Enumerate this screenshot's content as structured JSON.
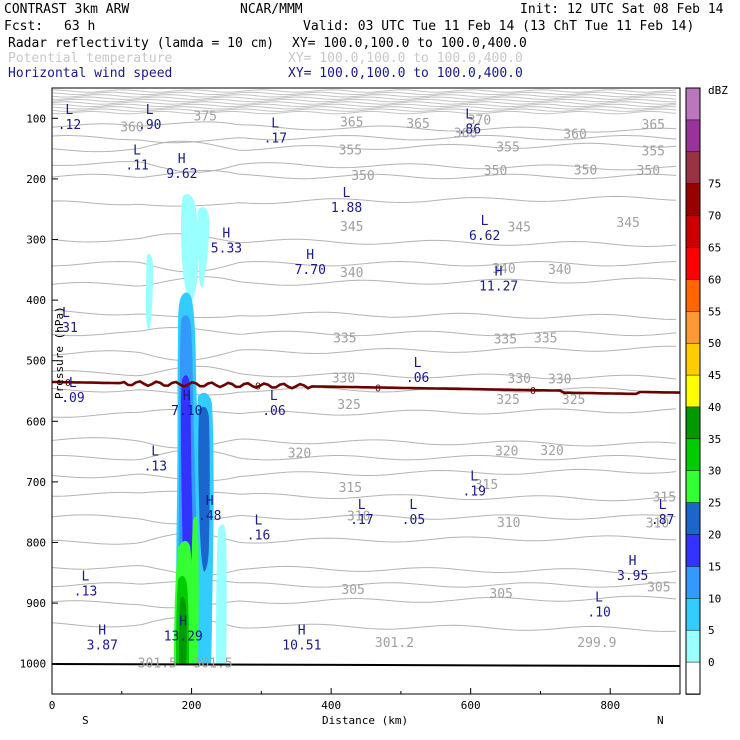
{
  "header": {
    "model": "CONTRAST  3km ARW",
    "org": "NCAR/MMM",
    "init": "Init: 12 UTC Sat 08 Feb 14",
    "fcst_label": "Fcst:",
    "fcst_value": "63 h",
    "valid": "Valid: 03 UTC Tue 11 Feb 14 (13 ChT Tue 11 Feb 14)",
    "line1_name": "Radar reflectivity (lamda = 10 cm)",
    "line1_xy": "XY= 100.0,100.0 to 100.0,400.0",
    "line2_name": "Potential temperature",
    "line2_xy": "XY= 100.0,100.0 to 100.0,400.0",
    "line3_name": "Horizontal wind speed",
    "line3_xy": "XY= 100.0,100.0 to 100.0,400.0"
  },
  "colors": {
    "refl_1": "#99ffff",
    "refl_2": "#33ccff",
    "refl_3": "#3399ff",
    "refl_4": "#3333ff",
    "refl_5": "#1a66cc",
    "refl_6": "#33ff33",
    "refl_7": "#00cc00",
    "refl_8": "#009900",
    "theta": "#a8a8a8",
    "freezing": "#6b0000",
    "wind": "#1a1a8c"
  },
  "chart_data": {
    "type": "cross-section",
    "xlabel": "Distance (km)",
    "ylabel": "Pressure (hPa)",
    "xlim": [
      0,
      900
    ],
    "ylim": [
      1050,
      50
    ],
    "x_ticks": [
      "0",
      "200",
      "400",
      "600",
      "800"
    ],
    "y_ticks": [
      "100",
      "200",
      "300",
      "400",
      "500",
      "600",
      "700",
      "800",
      "900",
      "1000"
    ],
    "x_end_left": "S",
    "x_end_right": "N",
    "colorbar": {
      "unit": "dBZ",
      "levels": [
        "0",
        "5",
        "10",
        "15",
        "20",
        "25",
        "30",
        "35",
        "40",
        "45",
        "50",
        "55",
        "60",
        "65",
        "70",
        "75"
      ],
      "colors": [
        "#ffffff",
        "#99ffff",
        "#33ccff",
        "#3399ff",
        "#3333ff",
        "#1a66cc",
        "#33ff33",
        "#00cc00",
        "#009900",
        "#ffff00",
        "#ffcc00",
        "#ff9933",
        "#ff6600",
        "#ff0000",
        "#cc0000",
        "#990000",
        "#993344",
        "#993399",
        "#bb77bb"
      ]
    },
    "freezing_level": {
      "label": "0",
      "pressure_hPa": 545
    },
    "theta_labels": [
      {
        "t": "375",
        "x": 220,
        "p": 97
      },
      {
        "t": "360",
        "x": 115,
        "p": 115
      },
      {
        "t": "365",
        "x": 430,
        "p": 107
      },
      {
        "t": "365",
        "x": 525,
        "p": 109
      },
      {
        "t": "370",
        "x": 613,
        "p": 104
      },
      {
        "t": "360",
        "x": 593,
        "p": 125
      },
      {
        "t": "360",
        "x": 750,
        "p": 127
      },
      {
        "t": "365",
        "x": 862,
        "p": 111
      },
      {
        "t": "355",
        "x": 428,
        "p": 153
      },
      {
        "t": "355",
        "x": 654,
        "p": 148
      },
      {
        "t": "355",
        "x": 862,
        "p": 155
      },
      {
        "t": "350",
        "x": 446,
        "p": 195
      },
      {
        "t": "350",
        "x": 636,
        "p": 187
      },
      {
        "t": "350",
        "x": 765,
        "p": 186
      },
      {
        "t": "350",
        "x": 855,
        "p": 187
      },
      {
        "t": "345",
        "x": 430,
        "p": 279
      },
      {
        "t": "345",
        "x": 670,
        "p": 280
      },
      {
        "t": "345",
        "x": 826,
        "p": 273
      },
      {
        "t": "340",
        "x": 430,
        "p": 355
      },
      {
        "t": "340",
        "x": 648,
        "p": 349
      },
      {
        "t": "340",
        "x": 728,
        "p": 350
      },
      {
        "t": "335",
        "x": 420,
        "p": 463
      },
      {
        "t": "335",
        "x": 650,
        "p": 465
      },
      {
        "t": "335",
        "x": 708,
        "p": 463
      },
      {
        "t": "330",
        "x": 418,
        "p": 529
      },
      {
        "t": "330",
        "x": 670,
        "p": 530
      },
      {
        "t": "330",
        "x": 728,
        "p": 531
      },
      {
        "t": "325",
        "x": 426,
        "p": 573
      },
      {
        "t": "325",
        "x": 654,
        "p": 565
      },
      {
        "t": "325",
        "x": 748,
        "p": 565
      },
      {
        "t": "320",
        "x": 355,
        "p": 653
      },
      {
        "t": "320",
        "x": 652,
        "p": 650
      },
      {
        "t": "320",
        "x": 717,
        "p": 649
      },
      {
        "t": "315",
        "x": 428,
        "p": 710
      },
      {
        "t": "315",
        "x": 623,
        "p": 705
      },
      {
        "t": "315",
        "x": 878,
        "p": 726
      },
      {
        "t": "310",
        "x": 440,
        "p": 757
      },
      {
        "t": "310",
        "x": 655,
        "p": 768
      },
      {
        "t": "310",
        "x": 868,
        "p": 769
      },
      {
        "t": "305",
        "x": 432,
        "p": 878
      },
      {
        "t": "305",
        "x": 644,
        "p": 885
      },
      {
        "t": "305",
        "x": 870,
        "p": 874
      },
      {
        "t": "301.2",
        "x": 480,
        "p": 966
      },
      {
        "t": "301.5",
        "x": 140,
        "p": 1000
      },
      {
        "t": "301.5",
        "x": 220,
        "p": 1000
      },
      {
        "t": "299.9",
        "x": 770,
        "p": 966
      }
    ],
    "wind_extrema": [
      {
        "type": "L",
        "value": ".12",
        "x": 25,
        "p": 103
      },
      {
        "type": "L",
        "value": ".90",
        "x": 140,
        "p": 103
      },
      {
        "type": "L",
        "value": ".17",
        "x": 320,
        "p": 125
      },
      {
        "type": "L",
        "value": ".86",
        "x": 598,
        "p": 110
      },
      {
        "type": "L",
        "value": ".11",
        "x": 122,
        "p": 170
      },
      {
        "type": "H",
        "value": "9.62",
        "x": 186,
        "p": 184
      },
      {
        "type": "L",
        "value": "1.88",
        "x": 422,
        "p": 240
      },
      {
        "type": "L",
        "value": "6.62",
        "x": 620,
        "p": 286
      },
      {
        "type": "H",
        "value": "5.33",
        "x": 250,
        "p": 307
      },
      {
        "type": "H",
        "value": "7.70",
        "x": 370,
        "p": 342
      },
      {
        "type": "H",
        "value": "11.27",
        "x": 640,
        "p": 369
      },
      {
        "type": "L",
        "value": ".31",
        "x": 20,
        "p": 438
      },
      {
        "type": "L",
        "value": ".06",
        "x": 524,
        "p": 520
      },
      {
        "type": "L",
        "value": ".09",
        "x": 30,
        "p": 553
      },
      {
        "type": "H",
        "value": "7.10",
        "x": 193,
        "p": 575
      },
      {
        "type": "L",
        "value": ".06",
        "x": 318,
        "p": 575
      },
      {
        "type": "L",
        "value": ".13",
        "x": 148,
        "p": 666
      },
      {
        "type": "L",
        "value": ".19",
        "x": 605,
        "p": 708
      },
      {
        "type": "L",
        "value": ".17",
        "x": 444,
        "p": 755
      },
      {
        "type": "L",
        "value": ".05",
        "x": 518,
        "p": 755
      },
      {
        "type": "L",
        "value": ".87",
        "x": 875,
        "p": 755
      },
      {
        "type": "H",
        "value": ".48",
        "x": 226,
        "p": 748
      },
      {
        "type": "L",
        "value": ".16",
        "x": 296,
        "p": 780
      },
      {
        "type": "H",
        "value": "3.95",
        "x": 832,
        "p": 847
      },
      {
        "type": "L",
        "value": ".13",
        "x": 48,
        "p": 873
      },
      {
        "type": "L",
        "value": ".10",
        "x": 784,
        "p": 907
      },
      {
        "type": "H",
        "value": "13.29",
        "x": 188,
        "p": 947
      },
      {
        "type": "H",
        "value": "3.87",
        "x": 72,
        "p": 962
      },
      {
        "type": "H",
        "value": "10.51",
        "x": 358,
        "p": 962
      }
    ]
  }
}
